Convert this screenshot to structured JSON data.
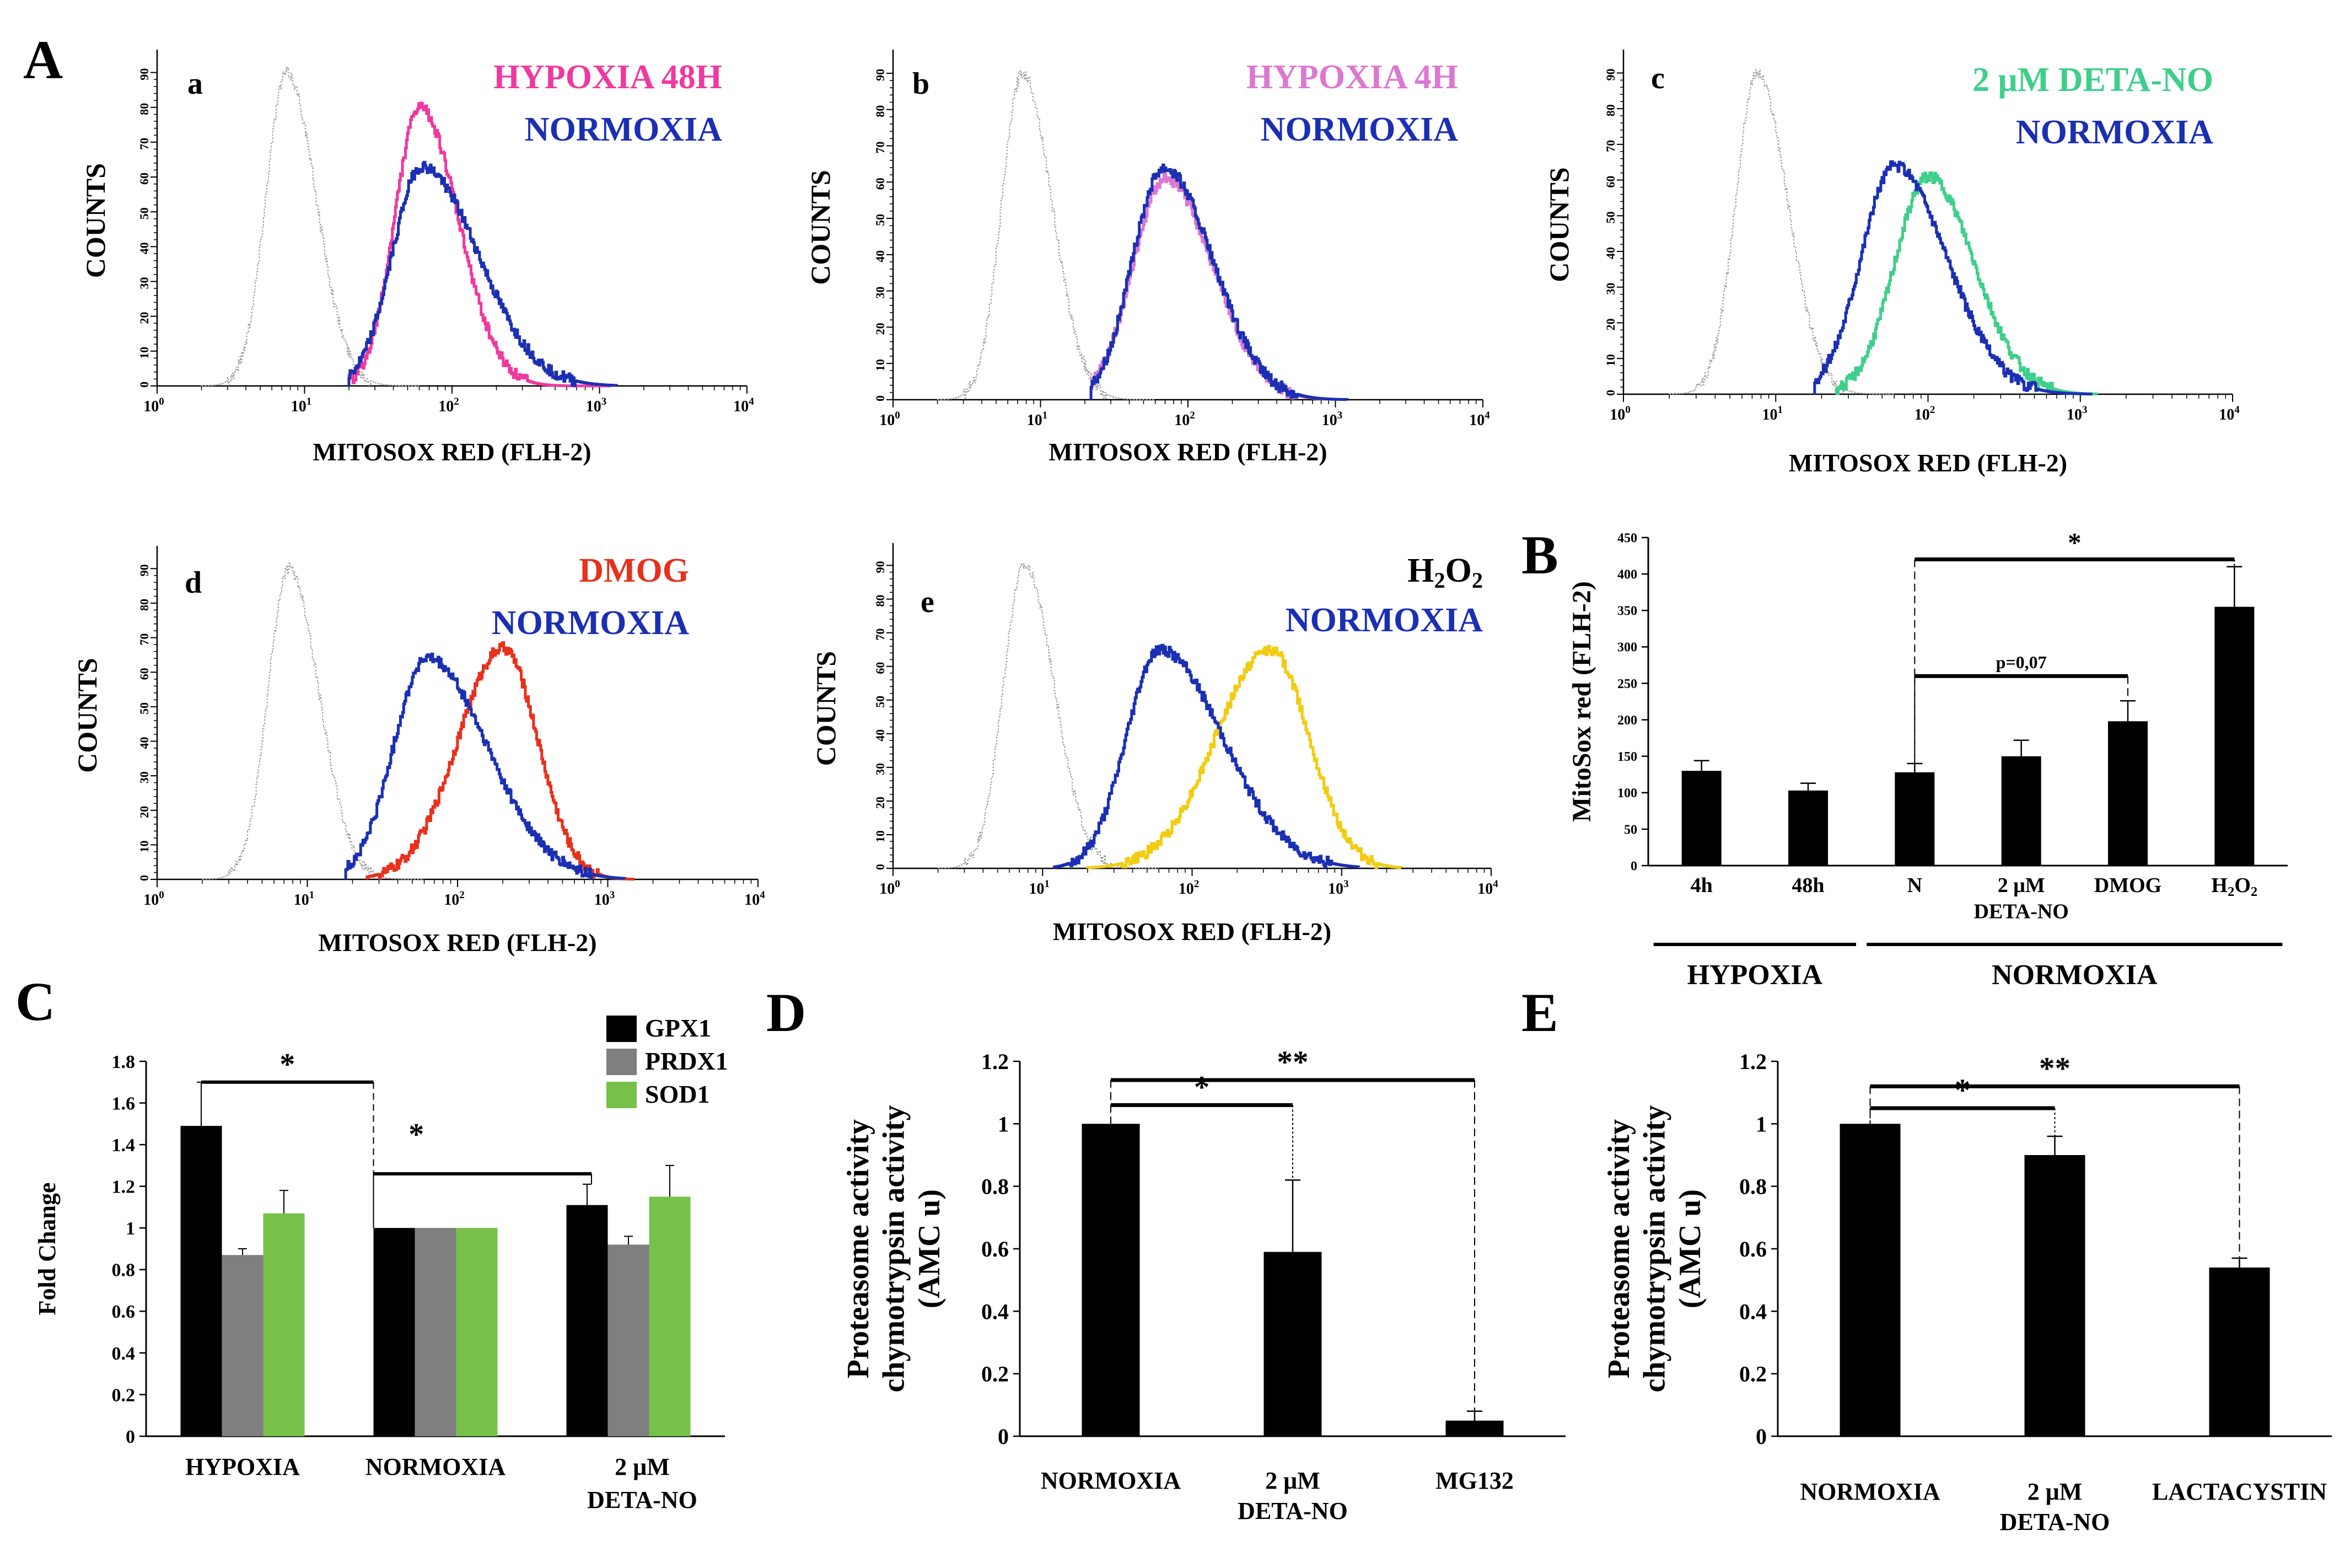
{
  "figure": {
    "panel_letters": [
      "A",
      "B",
      "C",
      "D",
      "E"
    ]
  },
  "colors": {
    "normoxia": "#1a2fb3",
    "hypoxia48": "#f0399f",
    "hypoxia4": "#dc78d2",
    "deta": "#3ecf8a",
    "dmog": "#e8301c",
    "h2o2": "#f2cc10",
    "control": "#9a9a9a",
    "gpx1": "#000000",
    "prdx1": "#7f7f7f",
    "sod1": "#77c14a"
  },
  "chart_data": [
    {
      "id": "a",
      "type": "line",
      "label": "a",
      "xlabel": "MITOSOX RED (FLH-2)",
      "ylabel": "COUNTS",
      "xscale": "log",
      "xlim": [
        1,
        10000
      ],
      "ylim": [
        0,
        95
      ],
      "xticks": [
        [
          "10",
          "0"
        ],
        [
          "10",
          "1"
        ],
        [
          "10",
          "2"
        ],
        [
          "10",
          "3"
        ],
        [
          "10",
          "4"
        ]
      ],
      "yticks": [
        0,
        10,
        20,
        30,
        40,
        50,
        60,
        70,
        80,
        90
      ],
      "series": [
        {
          "name": "HYPOXIA 48H",
          "colorKey": "hypoxia48",
          "legend": true,
          "peak_x": 60,
          "peak_y": 80,
          "sigma_left": 0.17,
          "sigma_right": 0.26,
          "x_min": 20,
          "x_max": 1200
        },
        {
          "name": "NORMOXIA",
          "colorKey": "normoxia",
          "legend": true,
          "peak_x": 62,
          "peak_y": 63,
          "sigma_left": 0.2,
          "sigma_right": 0.38,
          "x_min": 20,
          "x_max": 1300
        },
        {
          "name": "control",
          "colorKey": "control",
          "legend": false,
          "peak_x": 7.5,
          "peak_y": 90,
          "sigma_left": 0.14,
          "sigma_right": 0.2,
          "x_min": 2,
          "x_max": 60
        }
      ]
    },
    {
      "id": "b",
      "type": "line",
      "label": "b",
      "xlabel": "MITOSOX RED (FLH-2)",
      "ylabel": "COUNTS",
      "xscale": "log",
      "xlim": [
        1,
        10000
      ],
      "ylim": [
        0,
        95
      ],
      "xticks": [
        [
          "10",
          "0"
        ],
        [
          "10",
          "1"
        ],
        [
          "10",
          "2"
        ],
        [
          "10",
          "3"
        ],
        [
          "10",
          "4"
        ]
      ],
      "yticks": [
        0,
        10,
        20,
        30,
        40,
        50,
        60,
        70,
        80,
        90
      ],
      "series": [
        {
          "name": "HYPOXIA 4H",
          "colorKey": "hypoxia4",
          "legend": true,
          "peak_x": 70,
          "peak_y": 61,
          "sigma_left": 0.22,
          "sigma_right": 0.32,
          "x_min": 22,
          "x_max": 1200
        },
        {
          "name": "NORMOXIA",
          "colorKey": "normoxia",
          "legend": true,
          "peak_x": 68,
          "peak_y": 64,
          "sigma_left": 0.21,
          "sigma_right": 0.33,
          "x_min": 22,
          "x_max": 1200
        },
        {
          "name": "control",
          "colorKey": "control",
          "legend": false,
          "peak_x": 7.5,
          "peak_y": 90,
          "sigma_left": 0.14,
          "sigma_right": 0.2,
          "x_min": 2,
          "x_max": 60
        }
      ]
    },
    {
      "id": "c",
      "type": "line",
      "label": "c",
      "xlabel": "MITOSOX RED (FLH-2)",
      "ylabel": "COUNTS",
      "xscale": "log",
      "xlim": [
        1,
        10000
      ],
      "ylim": [
        0,
        95
      ],
      "xticks": [
        [
          "10",
          "0"
        ],
        [
          "10",
          "1"
        ],
        [
          "10",
          "2"
        ],
        [
          "10",
          "3"
        ],
        [
          "10",
          "4"
        ]
      ],
      "yticks": [
        0,
        10,
        20,
        30,
        40,
        50,
        60,
        70,
        80,
        90
      ],
      "series": [
        {
          "name": "2 μM DETA-NO",
          "colorKey": "deta",
          "legend": true,
          "peak_x": 100,
          "peak_y": 61,
          "sigma_left": 0.22,
          "sigma_right": 0.3,
          "x_min": 25,
          "x_max": 1300
        },
        {
          "name": "NORMOXIA",
          "colorKey": "normoxia",
          "legend": true,
          "peak_x": 60,
          "peak_y": 64,
          "sigma_left": 0.22,
          "sigma_right": 0.34,
          "x_min": 18,
          "x_max": 1200
        },
        {
          "name": "control",
          "colorKey": "control",
          "legend": false,
          "peak_x": 7.5,
          "peak_y": 90,
          "sigma_left": 0.14,
          "sigma_right": 0.2,
          "x_min": 2,
          "x_max": 60
        }
      ]
    },
    {
      "id": "d",
      "type": "line",
      "label": "d",
      "xlabel": "MITOSOX RED (FLH-2)",
      "ylabel": "COUNTS",
      "xscale": "log",
      "xlim": [
        1,
        10000
      ],
      "ylim": [
        0,
        95
      ],
      "xticks": [
        [
          "10",
          "0"
        ],
        [
          "10",
          "1"
        ],
        [
          "10",
          "2"
        ],
        [
          "10",
          "3"
        ],
        [
          "10",
          "4"
        ]
      ],
      "yticks": [
        0,
        10,
        20,
        30,
        40,
        50,
        60,
        70,
        80,
        90
      ],
      "series": [
        {
          "name": "DMOG",
          "colorKey": "dmog",
          "legend": true,
          "peak_x": 200,
          "peak_y": 67,
          "sigma_left": 0.3,
          "sigma_right": 0.23,
          "x_min": 25,
          "x_max": 1500
        },
        {
          "name": "NORMOXIA",
          "colorKey": "normoxia",
          "legend": true,
          "peak_x": 62,
          "peak_y": 64,
          "sigma_left": 0.22,
          "sigma_right": 0.4,
          "x_min": 18,
          "x_max": 1300
        },
        {
          "name": "control",
          "colorKey": "control",
          "legend": false,
          "peak_x": 7.5,
          "peak_y": 90,
          "sigma_left": 0.14,
          "sigma_right": 0.2,
          "x_min": 2,
          "x_max": 60
        }
      ]
    },
    {
      "id": "e",
      "type": "line",
      "label": "e",
      "xlabel": "MITOSOX RED (FLH-2)",
      "ylabel": "COUNTS",
      "xscale": "log",
      "xlim": [
        1,
        10000
      ],
      "ylim": [
        0,
        95
      ],
      "xticks": [
        [
          "10",
          "0"
        ],
        [
          "10",
          "1"
        ],
        [
          "10",
          "2"
        ],
        [
          "10",
          "3"
        ],
        [
          "10",
          "4"
        ]
      ],
      "yticks": [
        0,
        10,
        20,
        30,
        40,
        50,
        60,
        70,
        80,
        90
      ],
      "series": [
        {
          "name": "H2O2",
          "colorKey": "h2o2",
          "legend": true,
          "peak_x": 330,
          "peak_y": 65,
          "sigma_left": 0.36,
          "sigma_right": 0.26,
          "x_min": 20,
          "x_max": 2500
        },
        {
          "name": "NORMOXIA",
          "colorKey": "normoxia",
          "legend": true,
          "peak_x": 60,
          "peak_y": 65,
          "sigma_left": 0.22,
          "sigma_right": 0.42,
          "x_min": 12,
          "x_max": 1300
        },
        {
          "name": "control",
          "colorKey": "control",
          "legend": false,
          "peak_x": 7.5,
          "peak_y": 90,
          "sigma_left": 0.14,
          "sigma_right": 0.2,
          "x_min": 2,
          "x_max": 60
        }
      ]
    },
    {
      "id": "B",
      "type": "bar",
      "ylabel": "MitoSox red (FLH-2)",
      "ylim": [
        0,
        450
      ],
      "yticks": [
        0,
        50,
        100,
        150,
        200,
        250,
        300,
        350,
        400,
        450
      ],
      "categories": [
        [
          "4h"
        ],
        [
          "48h"
        ],
        [
          "N"
        ],
        [
          "2 μM",
          "DETA-NO"
        ],
        [
          "DMOG"
        ],
        [
          "H2O2"
        ]
      ],
      "values": [
        130,
        103,
        128,
        150,
        198,
        355
      ],
      "errors": [
        14,
        10,
        12,
        22,
        28,
        55
      ],
      "groups": [
        {
          "label": "HYPOXIA",
          "from": 0,
          "to": 1
        },
        {
          "label": "NORMOXIA",
          "from": 2,
          "to": 5
        }
      ],
      "annotations": [
        {
          "text": "*",
          "from": 2,
          "to": 5,
          "y": 420
        },
        {
          "text": "p=0,07",
          "from": 2,
          "to": 4,
          "y": 260
        }
      ]
    },
    {
      "id": "C",
      "type": "bar",
      "ylabel": "Fold Change",
      "ylim": [
        0,
        1.8
      ],
      "yticks": [
        0,
        0.2,
        0.4,
        0.6,
        0.8,
        1,
        1.2,
        1.4,
        1.6,
        1.8
      ],
      "categories": [
        [
          "HYPOXIA"
        ],
        [
          "NORMOXIA"
        ],
        [
          "2 μM",
          "DETA-NO"
        ]
      ],
      "series": [
        {
          "name": "GPX1",
          "colorKey": "gpx1",
          "values": [
            1.49,
            1.0,
            1.11
          ],
          "errors": [
            0.21,
            0.0,
            0.1
          ]
        },
        {
          "name": "PRDX1",
          "colorKey": "prdx1",
          "values": [
            0.87,
            1.0,
            0.92
          ],
          "errors": [
            0.03,
            0.0,
            0.04
          ]
        },
        {
          "name": "SOD1",
          "colorKey": "sod1",
          "values": [
            1.07,
            1.0,
            1.15
          ],
          "errors": [
            0.11,
            0.0,
            0.15
          ]
        }
      ],
      "annotations": [
        {
          "text": "*",
          "from_group": 0,
          "to_group": 1,
          "y": 1.7
        },
        {
          "text": "*",
          "from_group": 1,
          "to_group": 2,
          "y": 1.26
        }
      ]
    },
    {
      "id": "D",
      "type": "bar",
      "ylabel": [
        "Proteasome activity",
        "chymotrypsin activity",
        "(AMC u)"
      ],
      "ylim": [
        0,
        1.2
      ],
      "yticks": [
        0,
        0.2,
        0.4,
        0.6,
        0.8,
        1,
        1.2
      ],
      "categories": [
        [
          "NORMOXIA"
        ],
        [
          "2 μM",
          "DETA-NO"
        ],
        [
          "MG132"
        ]
      ],
      "values": [
        1.0,
        0.59,
        0.05
      ],
      "errors": [
        0.0,
        0.23,
        0.03
      ],
      "annotations": [
        {
          "text": "*",
          "from": 0,
          "to": 1,
          "y": 1.06
        },
        {
          "text": "**",
          "from": 0,
          "to": 2,
          "y": 1.14
        }
      ]
    },
    {
      "id": "E",
      "type": "bar",
      "ylabel": [
        "Proteasome activity",
        "chymotrypsin activity",
        "(AMC u)"
      ],
      "ylim": [
        0,
        1.2
      ],
      "yticks": [
        0,
        0.2,
        0.4,
        0.6,
        0.8,
        1,
        1.2
      ],
      "categories": [
        [
          "NORMOXIA"
        ],
        [
          "2 μM",
          "DETA-NO"
        ],
        [
          "LACTACYSTIN"
        ]
      ],
      "values": [
        1.0,
        0.9,
        0.54
      ],
      "errors": [
        0.0,
        0.06,
        0.03
      ],
      "annotations": [
        {
          "text": "*",
          "from": 0,
          "to": 1,
          "y": 1.05
        },
        {
          "text": "**",
          "from": 0,
          "to": 2,
          "y": 1.12
        }
      ]
    }
  ]
}
